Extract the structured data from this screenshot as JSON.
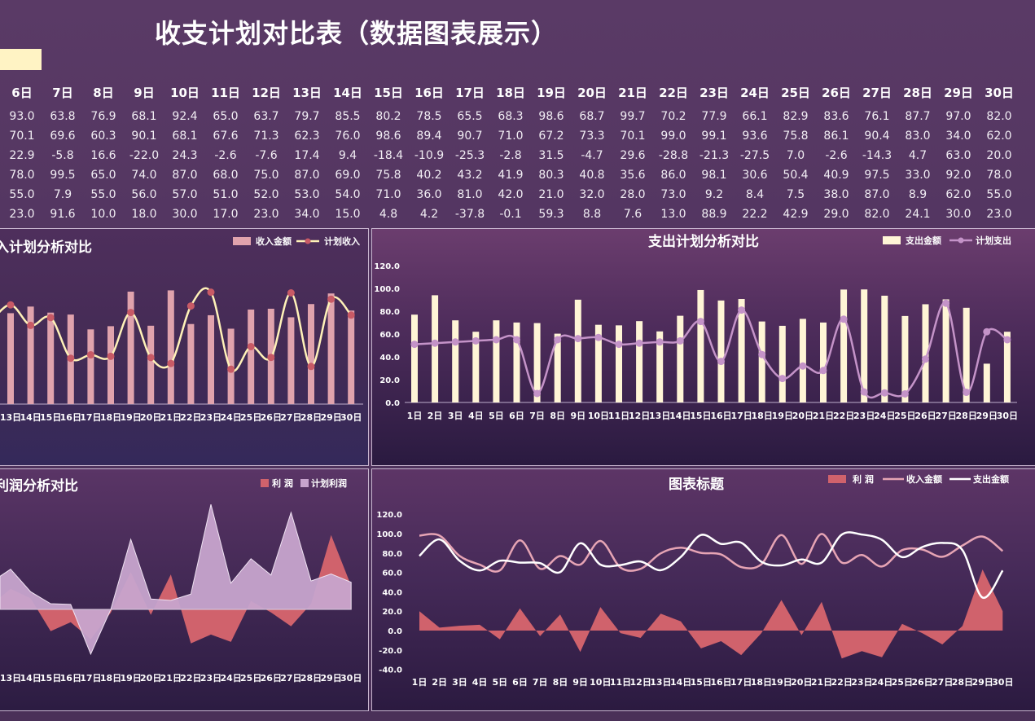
{
  "title": "收支计划对比表（数据图表展示）",
  "colors": {
    "income_bar": "#e0a3ad",
    "plan_income_line": "#fff2b8",
    "plan_income_marker": "#c85a66",
    "expense_bar": "#fff5d6",
    "plan_expense_line": "#c493c8",
    "profit_area": "#d0626c",
    "plan_profit_area": "#c7a4cd",
    "combo_income_line": "#e6a4b4",
    "combo_expense_line": "#ffffff"
  },
  "table": {
    "headers": [
      "6日",
      "7日",
      "8日",
      "9日",
      "10日",
      "11日",
      "12日",
      "13日",
      "14日",
      "15日",
      "16日",
      "17日",
      "18日",
      "19日",
      "20日",
      "21日",
      "22日",
      "23日",
      "24日",
      "25日",
      "26日",
      "27日",
      "28日",
      "29日",
      "30日"
    ],
    "rows": [
      [
        "93.0",
        "63.8",
        "76.9",
        "68.1",
        "92.4",
        "65.0",
        "63.7",
        "79.7",
        "85.5",
        "80.2",
        "78.5",
        "65.5",
        "68.3",
        "98.6",
        "68.7",
        "99.7",
        "70.2",
        "77.9",
        "66.1",
        "82.9",
        "83.6",
        "76.1",
        "87.7",
        "97.0",
        "82.0"
      ],
      [
        "70.1",
        "69.6",
        "60.3",
        "90.1",
        "68.1",
        "67.6",
        "71.3",
        "62.3",
        "76.0",
        "98.6",
        "89.4",
        "90.7",
        "71.0",
        "67.2",
        "73.3",
        "70.1",
        "99.0",
        "99.1",
        "93.6",
        "75.8",
        "86.1",
        "90.4",
        "83.0",
        "34.0",
        "62.0"
      ],
      [
        "22.9",
        "-5.8",
        "16.6",
        "-22.0",
        "24.3",
        "-2.6",
        "-7.6",
        "17.4",
        "9.4",
        "-18.4",
        "-10.9",
        "-25.3",
        "-2.8",
        "31.5",
        "-4.7",
        "29.6",
        "-28.8",
        "-21.3",
        "-27.5",
        "7.0",
        "-2.6",
        "-14.3",
        "4.7",
        "63.0",
        "20.0"
      ],
      [
        "78.0",
        "99.5",
        "65.0",
        "74.0",
        "87.0",
        "68.0",
        "75.0",
        "87.0",
        "69.0",
        "75.8",
        "40.2",
        "43.2",
        "41.9",
        "80.3",
        "40.8",
        "35.6",
        "86.0",
        "98.1",
        "30.6",
        "50.4",
        "40.9",
        "97.5",
        "33.0",
        "92.0",
        "78.0"
      ],
      [
        "55.0",
        "7.9",
        "55.0",
        "56.0",
        "57.0",
        "51.0",
        "52.0",
        "53.0",
        "54.0",
        "71.0",
        "36.0",
        "81.0",
        "42.0",
        "21.0",
        "32.0",
        "28.0",
        "73.0",
        "9.2",
        "8.4",
        "7.5",
        "38.0",
        "87.0",
        "8.9",
        "62.0",
        "55.0"
      ],
      [
        "23.0",
        "91.6",
        "10.0",
        "18.0",
        "30.0",
        "17.0",
        "23.0",
        "34.0",
        "15.0",
        "4.8",
        "4.2",
        "-37.8",
        "-0.1",
        "59.3",
        "8.8",
        "7.6",
        "13.0",
        "88.9",
        "22.2",
        "42.9",
        "29.0",
        "82.0",
        "24.1",
        "30.0",
        "23.0"
      ]
    ]
  },
  "chart_data": [
    {
      "type": "bar",
      "title": "入计划分析对比",
      "legend_position": "top-right",
      "categories": [
        "13日",
        "14日",
        "15日",
        "16日",
        "17日",
        "18日",
        "19日",
        "20日",
        "21日",
        "22日",
        "23日",
        "24日",
        "25日",
        "26日",
        "27日",
        "28日",
        "29日",
        "30日"
      ],
      "series": [
        {
          "name": "收入金额",
          "kind": "bar",
          "values": [
            79.7,
            85.5,
            80.2,
            78.5,
            65.5,
            68.3,
            98.6,
            68.7,
            99.7,
            70.2,
            77.9,
            66.1,
            82.9,
            83.6,
            76.1,
            87.7,
            97.0,
            82.0
          ]
        },
        {
          "name": "计划收入",
          "kind": "line",
          "values": [
            87.0,
            69.0,
            75.8,
            40.2,
            43.2,
            41.9,
            80.3,
            40.8,
            35.6,
            86.0,
            98.1,
            30.6,
            50.4,
            40.9,
            97.5,
            33.0,
            92.0,
            78.0
          ]
        }
      ],
      "ylim": [
        0,
        100
      ],
      "grid": false
    },
    {
      "type": "bar",
      "title": "支出计划分析对比",
      "legend_position": "top-right",
      "categories": [
        "1日",
        "2日",
        "3日",
        "4日",
        "5日",
        "6日",
        "7日",
        "8日",
        "9日",
        "10日",
        "11日",
        "12日",
        "13日",
        "14日",
        "15日",
        "16日",
        "17日",
        "18日",
        "19日",
        "20日",
        "21日",
        "22日",
        "23日",
        "24日",
        "25日",
        "26日",
        "27日",
        "28日",
        "29日",
        "30日"
      ],
      "series": [
        {
          "name": "支出金额",
          "kind": "bar",
          "values": [
            77.0,
            94.0,
            72.0,
            62.0,
            72.0,
            70.1,
            69.6,
            60.3,
            90.1,
            68.1,
            67.6,
            71.3,
            62.3,
            76.0,
            98.6,
            89.4,
            90.7,
            71.0,
            67.2,
            73.3,
            70.1,
            99.0,
            99.1,
            93.6,
            75.8,
            86.1,
            90.4,
            83.0,
            34.0,
            62.0
          ]
        },
        {
          "name": "计划支出",
          "kind": "line",
          "values": [
            51.0,
            52.0,
            53.0,
            54.0,
            55.0,
            55.0,
            7.9,
            55.0,
            56.0,
            57.0,
            51.0,
            52.0,
            53.0,
            54.0,
            71.0,
            36.0,
            81.0,
            42.0,
            21.0,
            32.0,
            28.0,
            73.0,
            9.2,
            8.4,
            7.5,
            38.0,
            87.0,
            8.9,
            62.0,
            55.0
          ]
        }
      ],
      "yticks": [
        "0.0",
        "20.0",
        "40.0",
        "60.0",
        "80.0",
        "100.0",
        "120.0"
      ],
      "ylim": [
        0,
        120
      ],
      "grid": false
    },
    {
      "type": "area",
      "title": "利润分析对比",
      "legend_position": "top-right",
      "categories": [
        "13日",
        "14日",
        "15日",
        "16日",
        "17日",
        "18日",
        "19日",
        "20日",
        "21日",
        "22日",
        "23日",
        "24日",
        "25日",
        "26日",
        "27日",
        "28日",
        "29日",
        "30日"
      ],
      "series": [
        {
          "name": "利  润",
          "values": [
            17.4,
            9.4,
            -18.4,
            -10.9,
            -25.3,
            -2.8,
            31.5,
            -4.7,
            29.6,
            -28.8,
            -21.3,
            -27.5,
            7.0,
            -2.6,
            -14.3,
            4.7,
            63.0,
            20.0
          ]
        },
        {
          "name": "计划利润",
          "values": [
            34.0,
            15.0,
            4.8,
            4.2,
            -37.8,
            -0.1,
            59.3,
            8.8,
            7.6,
            13.0,
            88.9,
            22.2,
            42.9,
            29.0,
            82.0,
            24.1,
            30.0,
            23.0
          ]
        }
      ],
      "ylim": [
        -40,
        100
      ],
      "grid": false
    },
    {
      "type": "line",
      "title": "图表标题",
      "legend_position": "top-right",
      "categories": [
        "1日",
        "2日",
        "3日",
        "4日",
        "5日",
        "6日",
        "7日",
        "8日",
        "9日",
        "10日",
        "11日",
        "12日",
        "13日",
        "14日",
        "15日",
        "16日",
        "17日",
        "18日",
        "19日",
        "20日",
        "21日",
        "22日",
        "23日",
        "24日",
        "25日",
        "26日",
        "27日",
        "28日",
        "29日",
        "30日"
      ],
      "series": [
        {
          "name": "利  润",
          "kind": "area",
          "values": [
            20.0,
            3.0,
            5.0,
            6.0,
            -9.0,
            22.9,
            -5.8,
            16.6,
            -22.0,
            24.3,
            -2.6,
            -7.6,
            17.4,
            9.4,
            -18.4,
            -10.9,
            -25.3,
            -2.8,
            31.5,
            -4.7,
            29.6,
            -28.8,
            -21.3,
            -27.5,
            7.0,
            -2.6,
            -14.3,
            4.7,
            63.0,
            20.0
          ]
        },
        {
          "name": "收入金额",
          "kind": "line",
          "values": [
            98.0,
            98.0,
            77.0,
            68.0,
            62.0,
            93.0,
            63.8,
            76.9,
            68.1,
            92.4,
            65.0,
            63.7,
            79.7,
            85.5,
            80.2,
            78.5,
            65.5,
            68.3,
            98.6,
            68.7,
            99.7,
            70.2,
            77.9,
            66.1,
            82.9,
            83.6,
            76.1,
            87.7,
            97.0,
            82.0
          ]
        },
        {
          "name": "支出金额",
          "kind": "line",
          "values": [
            77.0,
            94.0,
            72.0,
            62.0,
            72.0,
            70.1,
            69.6,
            60.3,
            90.1,
            68.1,
            67.6,
            71.3,
            62.3,
            76.0,
            98.6,
            89.4,
            90.7,
            71.0,
            67.2,
            73.3,
            70.1,
            99.0,
            99.1,
            93.6,
            75.8,
            86.1,
            90.4,
            83.0,
            34.0,
            62.0
          ]
        }
      ],
      "yticks": [
        "-40.0",
        "-20.0",
        "0.0",
        "20.0",
        "40.0",
        "60.0",
        "80.0",
        "100.0",
        "120.0"
      ],
      "ylim": [
        -40,
        120
      ],
      "grid": false
    }
  ]
}
